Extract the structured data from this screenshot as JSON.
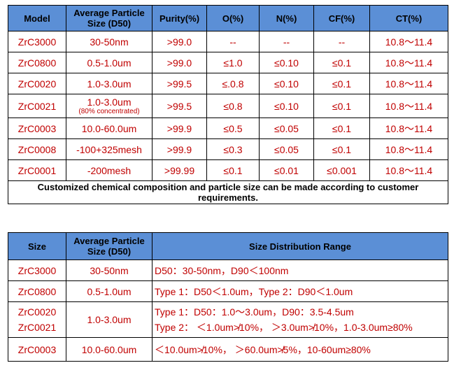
{
  "table1": {
    "headers": [
      "Model",
      "Average Particle Size (D50)",
      "Purity(%)",
      "O(%)",
      "N(%)",
      "CF(%)",
      "CT(%)"
    ],
    "rows": [
      {
        "model": "ZrC3000",
        "size": "30-50nm",
        "size_note": "",
        "purity": ">99.0",
        "o": "--",
        "n": "--",
        "cf": "--",
        "ct": "10.8～11.4"
      },
      {
        "model": "ZrC0800",
        "size": "0.5-1.0um",
        "size_note": "",
        "purity": ">99.0",
        "o": "≤1.0",
        "n": "≤0.10",
        "cf": "≤0.1",
        "ct": "10.8～11.4"
      },
      {
        "model": "ZrC0020",
        "size": "1.0-3.0um",
        "size_note": "",
        "purity": ">99.5",
        "o": "≤.0.8",
        "n": "≤0.10",
        "cf": "≤0.1",
        "ct": "10.8～11.4"
      },
      {
        "model": "ZrC0021",
        "size": "1.0-3.0um",
        "size_note": "(80% concentrated)",
        "purity": ">99.5",
        "o": "≤0.8",
        "n": "≤0.10",
        "cf": "≤0.1",
        "ct": "10.8～11.4"
      },
      {
        "model": "ZrC0003",
        "size": "10.0-60.0um",
        "size_note": "",
        "purity": ">99.9",
        "o": "≤0.5",
        "n": "≤0.05",
        "cf": "≤0.1",
        "ct": "10.8～11.4"
      },
      {
        "model": "ZrC0008",
        "size": "-100+325mesh",
        "size_note": "",
        "purity": ">99.9",
        "o": "≤0.3",
        "n": "≤0.05",
        "cf": "≤0.1",
        "ct": "10.8～11.4"
      },
      {
        "model": "ZrC0001",
        "size": "-200mesh",
        "size_note": "",
        "purity": ">99.99",
        "o": "≤0.1",
        "n": "≤0.01",
        "cf": "≤0.001",
        "ct": "10.8～11.4"
      }
    ],
    "note": "Customized chemical composition and particle size can be made according to customer requirements."
  },
  "table2": {
    "headers": [
      "Size",
      "Average Particle Size (D50)",
      "Size Distribution Range"
    ],
    "rows": [
      {
        "models": [
          "ZrC3000"
        ],
        "size": "30-50nm",
        "range": [
          "D50：30-50nm，D90＜100nm"
        ]
      },
      {
        "models": [
          "ZrC0800"
        ],
        "size": "0.5-1.0um",
        "range": [
          "Type 1：D50＜1.0um，Type 2：D90＜1.0um"
        ]
      },
      {
        "models": [
          "ZrC0020",
          "ZrC0021"
        ],
        "size": "1.0-3.0um",
        "range": [
          "Type 1：D50：1.0～3.0um，D90：3.5-4.5um",
          "Type 2： ＜1.0um≯10%， ＞3.0um≯10%，1.0-3.0um≥80%"
        ]
      },
      {
        "models": [
          "ZrC0003"
        ],
        "size": "10.0-60.0um",
        "range": [
          "＜10.0um≯10%， ＞60.0um≯5%，10-60um≥80%"
        ]
      }
    ]
  }
}
